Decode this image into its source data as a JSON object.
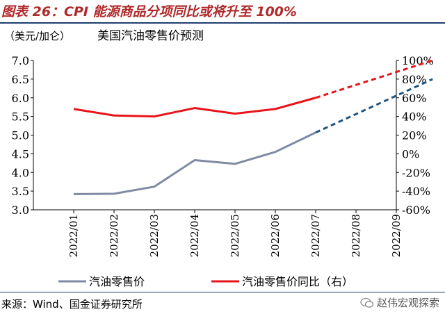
{
  "figure_title": "图表 26：CPI 能源商品分项同比或将升至 100%",
  "source": "来源：Wind、国金证券研究所",
  "watermark": "赵伟宏观探索",
  "colors": {
    "gas_price": "#7f8aa3",
    "gas_price_forecast": "#1f5680",
    "yoy": "#e8141b",
    "title": "#b0282a",
    "rule": "#1f3f6e"
  },
  "chart_data": {
    "type": "line",
    "title": "美国汽油零售价预测",
    "unit_label": "（美元/加仑）",
    "categories": [
      "2022/01",
      "2022/02",
      "2022/03",
      "2022/04",
      "2022/05",
      "2022/06",
      "2022/07",
      "2022/08",
      "2022/09"
    ],
    "y_left": {
      "range": [
        3.0,
        7.0
      ],
      "ticks": [
        "3.0",
        "3.5",
        "4.0",
        "4.5",
        "5.0",
        "5.5",
        "6.0",
        "6.5",
        "7.0"
      ]
    },
    "y_right": {
      "range": [
        -60,
        100
      ],
      "ticks": [
        "-60%",
        "-40%",
        "-20%",
        "0%",
        "20%",
        "40%",
        "60%",
        "80%",
        "100%"
      ]
    },
    "series": [
      {
        "name": "汽油零售价",
        "axis": "left",
        "values": [
          3.42,
          3.43,
          3.62,
          4.33,
          4.23,
          4.55,
          5.07,
          null,
          null
        ],
        "forecast": [
          [
            6,
            5.07
          ],
          [
            8.9,
            6.5
          ]
        ]
      },
      {
        "name": "汽油零售价同比（右）",
        "axis": "right",
        "values": [
          48,
          41,
          40,
          49,
          43,
          48,
          60,
          null,
          null
        ],
        "forecast": [
          [
            6,
            60
          ],
          [
            8.9,
            100
          ]
        ]
      }
    ],
    "grid": false,
    "legend": "bottom"
  }
}
